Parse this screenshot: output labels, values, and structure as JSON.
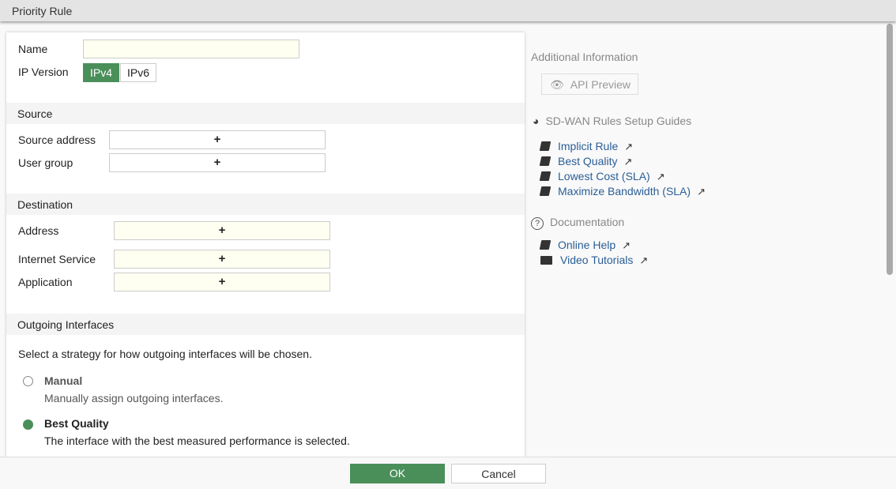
{
  "title": "Priority Rule",
  "form": {
    "name_label": "Name",
    "name_value": "",
    "ip_version_label": "IP Version",
    "ip_options": [
      "IPv4",
      "IPv6"
    ],
    "ip_selected": "IPv4",
    "source": {
      "header": "Source",
      "address_label": "Source address",
      "user_group_label": "User group"
    },
    "destination": {
      "header": "Destination",
      "address_label": "Address",
      "internet_service_label": "Internet Service",
      "application_label": "Application"
    },
    "add_symbol": "+",
    "outgoing": {
      "header": "Outgoing Interfaces",
      "description": "Select a strategy for how outgoing interfaces will be chosen.",
      "options": [
        {
          "label": "Manual",
          "desc": "Manually assign outgoing interfaces.",
          "selected": false
        },
        {
          "label": "Best Quality",
          "desc": "The interface with the best measured performance is selected.",
          "selected": true
        }
      ]
    }
  },
  "sidebar": {
    "additional_info": "Additional Information",
    "api_preview": "API Preview",
    "guides_header": "SD-WAN Rules Setup Guides",
    "guides": [
      "Implicit Rule",
      "Best Quality",
      "Lowest Cost (SLA)",
      "Maximize Bandwidth (SLA)"
    ],
    "docs_header": "Documentation",
    "docs": [
      "Online Help",
      "Video Tutorials"
    ]
  },
  "footer": {
    "ok": "OK",
    "cancel": "Cancel"
  },
  "colors": {
    "accent": "#4a8f5a",
    "link": "#2a5e96",
    "input_required": "#fefff0"
  }
}
